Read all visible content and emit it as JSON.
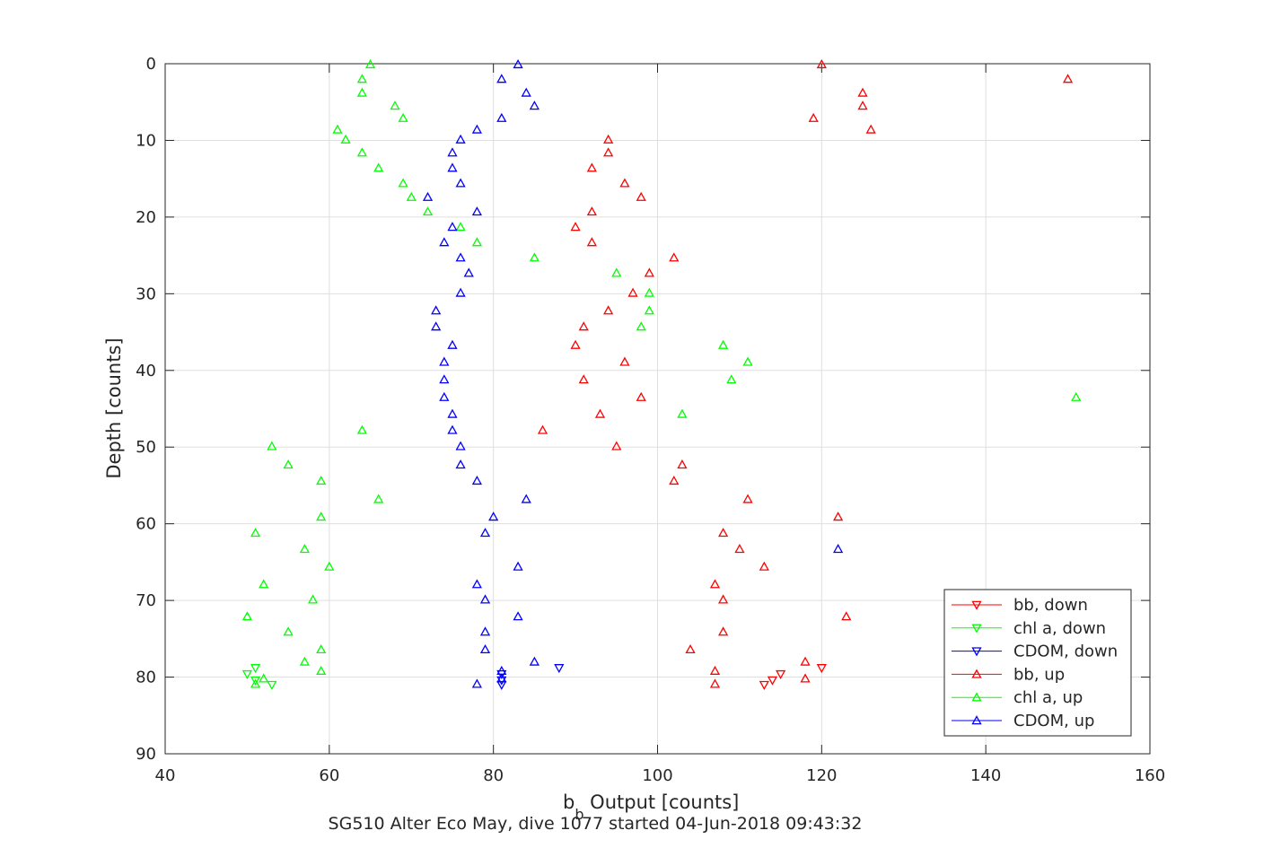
{
  "chart_data": {
    "type": "scatter",
    "title": "SG510 Alter Eco May, dive 1077 started 04-Jun-2018 09:43:32",
    "xlabel_main": "b",
    "xlabel_sub": "b",
    "xlabel_rest": " Output [counts]",
    "ylabel": "Depth [counts]",
    "xlim": [
      40,
      160
    ],
    "ylim": [
      0,
      90
    ],
    "y_reversed": true,
    "grid": true,
    "legend_position": "bottom-right",
    "x_ticks": [
      40,
      60,
      80,
      100,
      120,
      140,
      160
    ],
    "y_ticks": [
      0,
      10,
      20,
      30,
      40,
      50,
      60,
      70,
      80,
      90
    ],
    "series": [
      {
        "name": "bb, down",
        "color": "#ff0000",
        "marker": "triangle-down",
        "points": [
          [
            120,
            78.8
          ],
          [
            115,
            79.6
          ],
          [
            114,
            80.4
          ],
          [
            113,
            81.0
          ]
        ]
      },
      {
        "name": "chl a, down",
        "color": "#00ff00",
        "marker": "triangle-down",
        "points": [
          [
            51,
            78.8
          ],
          [
            50,
            79.6
          ],
          [
            51,
            80.4
          ],
          [
            53,
            81.0
          ]
        ]
      },
      {
        "name": "CDOM, down",
        "color": "#0000ff",
        "marker": "triangle-down",
        "points": [
          [
            88,
            78.8
          ],
          [
            81,
            79.6
          ],
          [
            81,
            80.4
          ],
          [
            81,
            81.0
          ]
        ]
      },
      {
        "name": "bb, up",
        "color": "#ff0000",
        "marker": "triangle-up",
        "points": [
          [
            120,
            0.1
          ],
          [
            150,
            2.0
          ],
          [
            125,
            3.8
          ],
          [
            125,
            5.5
          ],
          [
            119,
            7.1
          ],
          [
            126,
            8.6
          ],
          [
            94,
            9.9
          ],
          [
            94,
            11.6
          ],
          [
            92,
            13.6
          ],
          [
            96,
            15.6
          ],
          [
            98,
            17.4
          ],
          [
            92,
            19.3
          ],
          [
            90,
            21.3
          ],
          [
            92,
            23.3
          ],
          [
            102,
            25.3
          ],
          [
            99,
            27.3
          ],
          [
            97,
            29.9
          ],
          [
            94,
            32.2
          ],
          [
            91,
            34.3
          ],
          [
            90,
            36.7
          ],
          [
            96,
            38.9
          ],
          [
            91,
            41.2
          ],
          [
            98,
            43.5
          ],
          [
            93,
            45.7
          ],
          [
            86,
            47.8
          ],
          [
            95,
            49.9
          ],
          [
            103,
            52.3
          ],
          [
            102,
            54.4
          ],
          [
            111,
            56.8
          ],
          [
            122,
            59.1
          ],
          [
            108,
            61.2
          ],
          [
            110,
            63.3
          ],
          [
            113,
            65.6
          ],
          [
            107,
            67.9
          ],
          [
            108,
            69.9
          ],
          [
            123,
            72.1
          ],
          [
            108,
            74.1
          ],
          [
            104,
            76.4
          ],
          [
            118,
            78.0
          ],
          [
            107,
            79.2
          ],
          [
            118,
            80.2
          ],
          [
            107,
            80.9
          ]
        ]
      },
      {
        "name": "chl a, up",
        "color": "#00ff00",
        "marker": "triangle-up",
        "points": [
          [
            65,
            0.1
          ],
          [
            64,
            2.0
          ],
          [
            64,
            3.8
          ],
          [
            68,
            5.5
          ],
          [
            69,
            7.1
          ],
          [
            61,
            8.6
          ],
          [
            62,
            9.9
          ],
          [
            64,
            11.6
          ],
          [
            66,
            13.6
          ],
          [
            69,
            15.6
          ],
          [
            70,
            17.4
          ],
          [
            72,
            19.3
          ],
          [
            76,
            21.3
          ],
          [
            78,
            23.3
          ],
          [
            85,
            25.3
          ],
          [
            95,
            27.3
          ],
          [
            99,
            29.9
          ],
          [
            99,
            32.2
          ],
          [
            98,
            34.3
          ],
          [
            108,
            36.7
          ],
          [
            111,
            38.9
          ],
          [
            109,
            41.2
          ],
          [
            151,
            43.5
          ],
          [
            103,
            45.7
          ],
          [
            64,
            47.8
          ],
          [
            53,
            49.9
          ],
          [
            55,
            52.3
          ],
          [
            59,
            54.4
          ],
          [
            66,
            56.8
          ],
          [
            59,
            59.1
          ],
          [
            51,
            61.2
          ],
          [
            57,
            63.3
          ],
          [
            60,
            65.6
          ],
          [
            52,
            67.9
          ],
          [
            58,
            69.9
          ],
          [
            50,
            72.1
          ],
          [
            55,
            74.1
          ],
          [
            59,
            76.4
          ],
          [
            57,
            78.0
          ],
          [
            59,
            79.2
          ],
          [
            52,
            80.2
          ],
          [
            51,
            80.9
          ]
        ]
      },
      {
        "name": "CDOM, up",
        "color": "#0000ff",
        "marker": "triangle-up",
        "points": [
          [
            83,
            0.1
          ],
          [
            81,
            2.0
          ],
          [
            84,
            3.8
          ],
          [
            85,
            5.5
          ],
          [
            81,
            7.1
          ],
          [
            78,
            8.6
          ],
          [
            76,
            9.9
          ],
          [
            75,
            11.6
          ],
          [
            75,
            13.6
          ],
          [
            76,
            15.6
          ],
          [
            72,
            17.4
          ],
          [
            78,
            19.3
          ],
          [
            75,
            21.3
          ],
          [
            74,
            23.3
          ],
          [
            76,
            25.3
          ],
          [
            77,
            27.3
          ],
          [
            76,
            29.9
          ],
          [
            73,
            32.2
          ],
          [
            73,
            34.3
          ],
          [
            75,
            36.7
          ],
          [
            74,
            38.9
          ],
          [
            74,
            41.2
          ],
          [
            74,
            43.5
          ],
          [
            75,
            45.7
          ],
          [
            75,
            47.8
          ],
          [
            76,
            49.9
          ],
          [
            76,
            52.3
          ],
          [
            78,
            54.4
          ],
          [
            84,
            56.8
          ],
          [
            80,
            59.1
          ],
          [
            79,
            61.2
          ],
          [
            122,
            63.3
          ],
          [
            83,
            65.6
          ],
          [
            78,
            67.9
          ],
          [
            79,
            69.9
          ],
          [
            83,
            72.1
          ],
          [
            79,
            74.1
          ],
          [
            79,
            76.4
          ],
          [
            85,
            78.0
          ],
          [
            81,
            79.2
          ],
          [
            81,
            80.2
          ],
          [
            78,
            80.9
          ]
        ]
      }
    ]
  }
}
